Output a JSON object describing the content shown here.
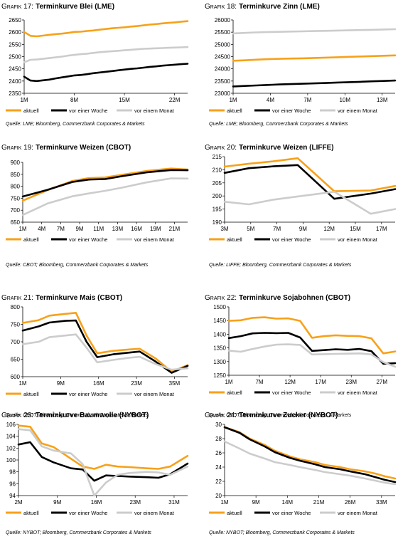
{
  "chart_data": [
    {
      "type": "line",
      "prefix": "Grafik 17:",
      "title": "Terminkurve Blei (LME)",
      "source": "Quelle: LME; Bloomberg, Commerzbank Corporates & Markets",
      "x_ticks": [
        "1M",
        "8M",
        "15M",
        "22M"
      ],
      "ylim": [
        2350,
        2650
      ],
      "y_ticks": [
        2350,
        2400,
        2450,
        2500,
        2550,
        2600,
        2650
      ],
      "x": [
        1,
        2,
        3,
        4,
        5,
        6,
        7,
        8,
        9,
        10,
        11,
        12,
        13,
        14,
        15,
        16,
        17,
        18,
        19,
        20,
        21,
        22,
        23,
        24,
        25,
        26,
        27
      ],
      "xlim": [
        1,
        27
      ],
      "series": [
        {
          "name": "aktuell",
          "color": "#F7A11A",
          "values": [
            2601,
            2585,
            2583,
            2586,
            2589,
            2592,
            2594,
            2597,
            2601,
            2602,
            2605,
            2607,
            2610,
            2613,
            2616,
            2618,
            2620,
            2623,
            2625,
            2628,
            2631,
            2633,
            2636,
            2638,
            2640,
            2643,
            2645
          ]
        },
        {
          "name": "vor einer Woche",
          "color": "#000000",
          "values": [
            2418,
            2402,
            2400,
            2403,
            2406,
            2411,
            2415,
            2419,
            2423,
            2425,
            2428,
            2432,
            2435,
            2438,
            2441,
            2444,
            2447,
            2450,
            2452,
            2455,
            2458,
            2460,
            2463,
            2465,
            2467,
            2469,
            2471
          ]
        },
        {
          "name": "vor einem Monat",
          "color": "#CCCCCC",
          "values": [
            2477,
            2487,
            2488,
            2491,
            2494,
            2497,
            2500,
            2504,
            2507,
            2510,
            2512,
            2515,
            2518,
            2520,
            2522,
            2524,
            2526,
            2528,
            2530,
            2532,
            2533,
            2534,
            2535,
            2536,
            2537,
            2538,
            2539
          ]
        }
      ]
    },
    {
      "type": "line",
      "prefix": "Grafik 18:",
      "title": "Terminkurve Zinn (LME)",
      "source": "Quelle: LME; Bloomberg, Commerzbank Corporates & Markets",
      "x_ticks": [
        "1M",
        "4M",
        "7M",
        "10M",
        "13M"
      ],
      "ylim": [
        23000,
        26000
      ],
      "y_ticks": [
        23000,
        23500,
        24000,
        24500,
        25000,
        25500,
        26000
      ],
      "x": [
        1,
        2,
        3,
        4,
        5,
        6,
        7,
        8,
        9,
        10,
        11,
        12,
        13,
        14,
        15
      ],
      "xlim": [
        1,
        15
      ],
      "series": [
        {
          "name": "aktuell",
          "color": "#F7A11A",
          "values": [
            24330,
            24350,
            24375,
            24395,
            24410,
            24420,
            24430,
            24445,
            24460,
            24475,
            24490,
            24505,
            24520,
            24535,
            24550
          ]
        },
        {
          "name": "vor einer Woche",
          "color": "#000000",
          "values": [
            23280,
            23300,
            23320,
            23340,
            23360,
            23375,
            23390,
            23405,
            23420,
            23440,
            23455,
            23470,
            23490,
            23505,
            23520
          ]
        },
        {
          "name": "vor einem Monat",
          "color": "#CCCCCC",
          "values": [
            25450,
            25470,
            25490,
            25505,
            25515,
            25525,
            25535,
            25545,
            25555,
            25565,
            25575,
            25585,
            25595,
            25610,
            25620
          ]
        }
      ]
    },
    {
      "type": "line",
      "prefix": "Grafik 19:",
      "title": "Terminkurve Weizen (CBOT)",
      "source": "Quelle: CBOT; Bloomberg, Commerzbank Corporates & Markets",
      "x_ticks": [
        "1M",
        "4M",
        "7M",
        "9M",
        "11M",
        "13M",
        "16M",
        "19M",
        "21M"
      ],
      "ylim": [
        650,
        900
      ],
      "y_ticks": [
        650,
        700,
        750,
        800,
        850,
        900
      ],
      "x": [
        1,
        4,
        7,
        9,
        11,
        13,
        16,
        19,
        21
      ],
      "xlim": [
        1,
        21
      ],
      "series": [
        {
          "name": "aktuell",
          "color": "#F7A11A",
          "values": [
            740,
            784,
            822,
            834,
            837,
            848,
            864,
            874,
            870
          ]
        },
        {
          "name": "vor einer Woche",
          "color": "#000000",
          "values": [
            757,
            785,
            818,
            828,
            830,
            842,
            858,
            868,
            867
          ]
        },
        {
          "name": "vor einem Monat",
          "color": "#CCCCCC",
          "values": [
            680,
            728,
            758,
            770,
            781,
            794,
            816,
            833,
            832
          ]
        }
      ]
    },
    {
      "type": "line",
      "prefix": "Grafik 20:",
      "title": "Terminkurve Weizen (LIFFE)",
      "source": "Quelle: LIFFE; Bloomberg, Commerzbank Corporates & Markets",
      "x_ticks": [
        "3M",
        "5M",
        "7M",
        "9M",
        "12M",
        "15M",
        "17M"
      ],
      "ylim": [
        190,
        215
      ],
      "y_ticks": [
        190,
        195,
        200,
        205,
        210,
        215
      ],
      "x": [
        3,
        5,
        7,
        9,
        12,
        15,
        17
      ],
      "xlim": [
        3,
        17
      ],
      "series": [
        {
          "name": "aktuell",
          "color": "#F7A11A",
          "values": [
            211.2,
            212.3,
            213.2,
            214.4,
            201.8,
            202.1,
            203.8
          ]
        },
        {
          "name": "vor einer Woche",
          "color": "#000000",
          "values": [
            208.8,
            210.6,
            211.3,
            211.8,
            198.9,
            200.9,
            202.6
          ]
        },
        {
          "name": "vor einem Monat",
          "color": "#CCCCCC",
          "values": [
            197.8,
            196.8,
            198.6,
            199.8,
            201.6,
            193.2,
            195.0
          ]
        }
      ]
    },
    {
      "type": "line",
      "prefix": "Grafik 21:",
      "title": "Terminkurve Mais (CBOT)",
      "source": "Quelle: CBOT; Bloomberg, Commerzbank Corporates & Markets",
      "x_ticks": [
        "1M",
        "9M",
        "16M",
        "23M",
        "35M"
      ],
      "ylim": [
        600,
        800
      ],
      "y_ticks": [
        600,
        650,
        700,
        750,
        800
      ],
      "x": [
        1,
        4,
        6,
        9,
        11,
        13,
        15,
        18,
        21,
        23,
        26,
        29,
        32
      ],
      "xlim": [
        1,
        32
      ],
      "series": [
        {
          "name": "aktuell",
          "color": "#F7A11A",
          "values": [
            754,
            762,
            775,
            780,
            783,
            718,
            667,
            674,
            678,
            680,
            652,
            614,
            633
          ]
        },
        {
          "name": "vor einer Woche",
          "color": "#000000",
          "values": [
            732,
            744,
            755,
            760,
            761,
            700,
            656,
            664,
            669,
            672,
            643,
            611,
            631
          ]
        },
        {
          "name": "vor einem Monat",
          "color": "#CCCCCC",
          "values": [
            693,
            700,
            713,
            718,
            721,
            683,
            641,
            648,
            654,
            657,
            636,
            620,
            624
          ]
        }
      ]
    },
    {
      "type": "line",
      "prefix": "Grafik 22:",
      "title": "Terminkurve Sojabohnen (CBOT)",
      "source": "Quelle: CBOT; Bloomberg, Commerzbank Corporates & Markets",
      "x_ticks": [
        "1M",
        "7M",
        "12M",
        "17M",
        "23M",
        "27M"
      ],
      "ylim": [
        1250,
        1500
      ],
      "y_ticks": [
        1250,
        1300,
        1350,
        1400,
        1450,
        1500
      ],
      "x": [
        1,
        3,
        5,
        7,
        9,
        11,
        13,
        15,
        17,
        19,
        21,
        23,
        25,
        27,
        29
      ],
      "xlim": [
        1,
        29
      ],
      "series": [
        {
          "name": "aktuell",
          "color": "#F7A11A",
          "values": [
            1449,
            1451,
            1460,
            1462,
            1457,
            1458,
            1449,
            1387,
            1393,
            1396,
            1394,
            1393,
            1385,
            1330,
            1337
          ]
        },
        {
          "name": "vor einer Woche",
          "color": "#000000",
          "values": [
            1386,
            1393,
            1403,
            1405,
            1404,
            1405,
            1388,
            1339,
            1342,
            1345,
            1343,
            1346,
            1338,
            1292,
            1294
          ]
        },
        {
          "name": "vor einem Monat",
          "color": "#CCCCCC",
          "values": [
            1340,
            1336,
            1346,
            1355,
            1362,
            1363,
            1361,
            1326,
            1327,
            1328,
            1329,
            1330,
            1326,
            1298,
            1281
          ]
        }
      ]
    },
    {
      "type": "line",
      "prefix": "Grafik 23:",
      "title": "Terminkurve Baumwolle (NYBOT)",
      "source": "Quelle: NYBOT; Bloomberg, Commerzbank Corporates & Markets",
      "x_ticks": [
        "2M",
        "9M",
        "16M",
        "23M",
        "31M"
      ],
      "ylim": [
        94,
        106
      ],
      "y_ticks": [
        94,
        96,
        98,
        100,
        102,
        104,
        106
      ],
      "x": [
        2,
        4,
        6,
        8,
        11,
        13,
        15,
        17,
        19,
        21,
        24,
        26,
        28,
        31
      ],
      "xlim": [
        2,
        31
      ],
      "series": [
        {
          "name": "aktuell",
          "color": "#F7A11A",
          "values": [
            105.8,
            105.6,
            102.8,
            102.2,
            100.2,
            98.9,
            98.5,
            99.2,
            98.9,
            98.8,
            98.6,
            98.5,
            98.9,
            100.7
          ]
        },
        {
          "name": "vor einer Woche",
          "color": "#000000",
          "values": [
            102.6,
            103.0,
            100.5,
            99.6,
            98.6,
            98.4,
            96.5,
            97.4,
            97.3,
            97.2,
            97.1,
            97.0,
            97.6,
            99.4
          ]
        },
        {
          "name": "vor einem Monat",
          "color": "#CCCCCC",
          "values": [
            105.2,
            105.0,
            102.3,
            101.6,
            101.1,
            99.3,
            94.0,
            96.2,
            97.5,
            97.8,
            98.0,
            97.9,
            97.5,
            98.9
          ]
        }
      ]
    },
    {
      "type": "line",
      "prefix": "Grafik 24:",
      "title": "Terminkurve Zucker (NYBOT)",
      "source": "Quelle: NYBOT; Bloomberg, Commerzbank Corporates & Markets",
      "x_ticks": [
        "1M",
        "9M",
        "14M",
        "21M",
        "26M",
        "33M"
      ],
      "ylim": [
        20,
        30
      ],
      "y_ticks": [
        20,
        22,
        24,
        26,
        28,
        30
      ],
      "x": [
        1,
        4,
        6,
        9,
        11,
        14,
        16,
        19,
        21,
        24,
        26,
        29,
        31,
        33,
        35
      ],
      "xlim": [
        1,
        35
      ],
      "series": [
        {
          "name": "aktuell",
          "color": "#F7A11A",
          "values": [
            29.6,
            28.9,
            28.0,
            27.1,
            26.3,
            25.5,
            25.1,
            24.7,
            24.3,
            24.0,
            23.7,
            23.4,
            23.1,
            22.7,
            22.4
          ]
        },
        {
          "name": "vor einer Woche",
          "color": "#000000",
          "values": [
            29.6,
            28.8,
            27.9,
            26.9,
            26.1,
            25.3,
            24.9,
            24.4,
            24.0,
            23.7,
            23.4,
            23.0,
            22.6,
            22.2,
            21.9
          ]
        },
        {
          "name": "vor einem Monat",
          "color": "#CCCCCC",
          "values": [
            27.6,
            26.6,
            25.9,
            25.2,
            24.7,
            24.3,
            24.0,
            23.6,
            23.3,
            23.0,
            22.8,
            22.4,
            22.1,
            21.8,
            21.6
          ]
        }
      ]
    }
  ]
}
